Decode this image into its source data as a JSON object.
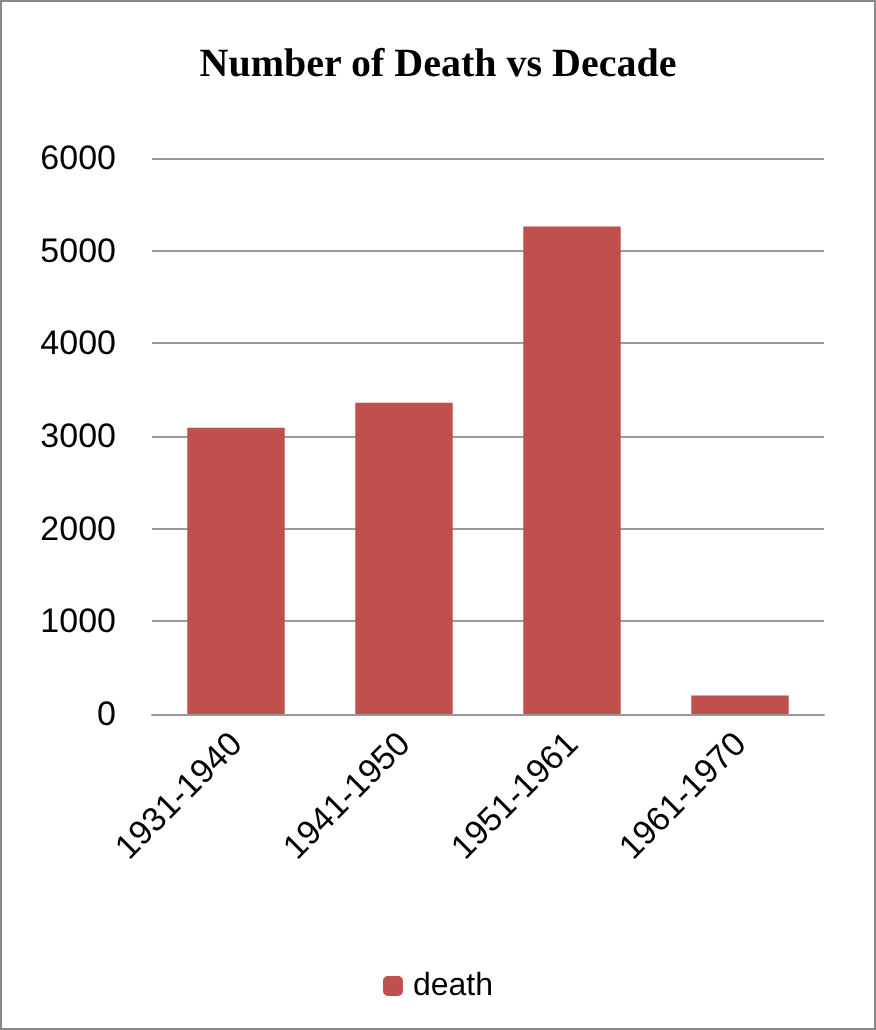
{
  "chart_data": {
    "type": "bar",
    "title": "Number of Death vs Decade",
    "categories": [
      "1931-1940",
      "1941-1950",
      "1951-1961",
      "1961-1970"
    ],
    "series": [
      {
        "name": "death",
        "color": "#c0504d",
        "values": [
          3090,
          3360,
          5260,
          200
        ]
      }
    ],
    "ylim": [
      0,
      6000
    ],
    "yticks": [
      0,
      1000,
      2000,
      3000,
      4000,
      5000,
      6000
    ],
    "grid": "y",
    "legend": "bottom"
  }
}
